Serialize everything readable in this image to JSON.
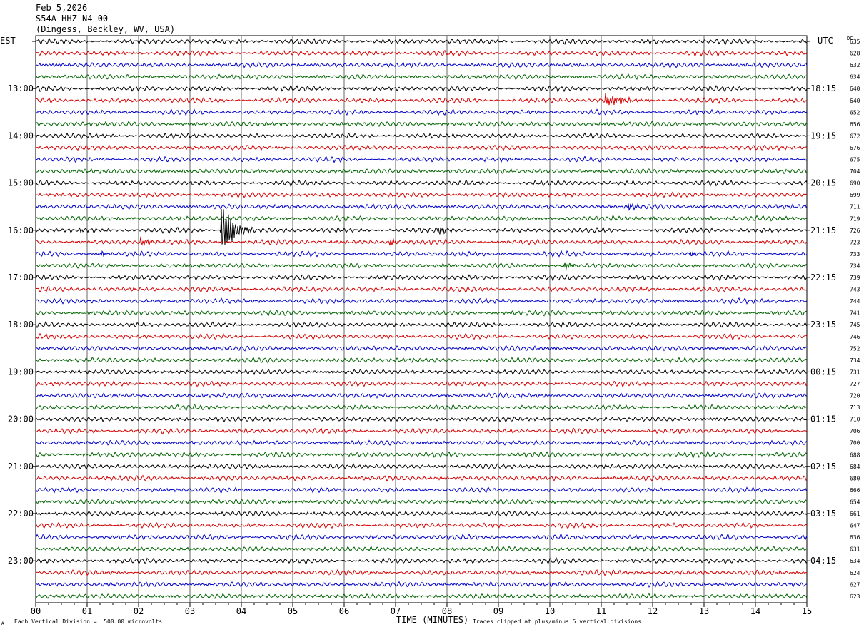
{
  "header": {
    "date": "Feb 5,2026",
    "station": "S54A HHZ N4 00",
    "location": "(Dingess, Beckley, WV, USA)"
  },
  "left_zone": "EST",
  "right_zone": "UTC",
  "dc_label": "DC",
  "colors": [
    "#000000",
    "#d40000",
    "#0000c8",
    "#006400"
  ],
  "footer": {
    "scale_note": "Each Vertical Division =  500.00 microvolts",
    "clip_note": "Traces clipped at plus/minus 5 vertical divisions",
    "corner_mark": "A"
  },
  "chart_data": {
    "type": "line",
    "xlabel": "TIME (MINUTES)",
    "xlim": [
      0,
      15
    ],
    "x_ticks": [
      "00",
      "01",
      "02",
      "03",
      "04",
      "05",
      "06",
      "07",
      "08",
      "09",
      "10",
      "11",
      "12",
      "13",
      "14",
      "15"
    ],
    "left_hour_labels": [
      "13:00",
      "14:00",
      "15:00",
      "16:00",
      "17:00",
      "18:00",
      "19:00",
      "20:00",
      "21:00",
      "22:00",
      "23:00"
    ],
    "right_hour_labels": [
      "18:15",
      "19:15",
      "20:15",
      "21:15",
      "22:15",
      "23:15",
      "00:15",
      "01:15",
      "02:15",
      "03:15",
      "04:15"
    ],
    "trace_dc_values": [
      635,
      628,
      632,
      634,
      640,
      640,
      652,
      656,
      672,
      676,
      675,
      704,
      690,
      699,
      711,
      719,
      726,
      723,
      733,
      734,
      739,
      743,
      744,
      741,
      745,
      746,
      752,
      734,
      731,
      727,
      720,
      713,
      710,
      706,
      700,
      688,
      684,
      680,
      666,
      654,
      661,
      647,
      636,
      631,
      634,
      624,
      627,
      623
    ],
    "events": [
      {
        "trace": 5,
        "minute": 11.1,
        "amp": 4,
        "dur": 0.9
      },
      {
        "trace": 14,
        "minute": 11.55,
        "amp": 3,
        "dur": 0.3
      },
      {
        "trace": 15,
        "minute": 12.0,
        "amp": 1.5,
        "dur": 0.3
      },
      {
        "trace": 16,
        "minute": 3.62,
        "amp": 20,
        "dur": 0.6
      },
      {
        "trace": 16,
        "minute": 0.9,
        "amp": 1.5,
        "dur": 0.2
      },
      {
        "trace": 16,
        "minute": 7.85,
        "amp": 2.5,
        "dur": 0.35
      },
      {
        "trace": 17,
        "minute": 2.05,
        "amp": 3,
        "dur": 0.5
      },
      {
        "trace": 17,
        "minute": 6.9,
        "amp": 2.5,
        "dur": 0.4
      },
      {
        "trace": 18,
        "minute": 1.3,
        "amp": 2,
        "dur": 0.2
      },
      {
        "trace": 18,
        "minute": 12.75,
        "amp": 2,
        "dur": 0.3
      },
      {
        "trace": 19,
        "minute": 10.3,
        "amp": 2.5,
        "dur": 0.4
      }
    ]
  }
}
